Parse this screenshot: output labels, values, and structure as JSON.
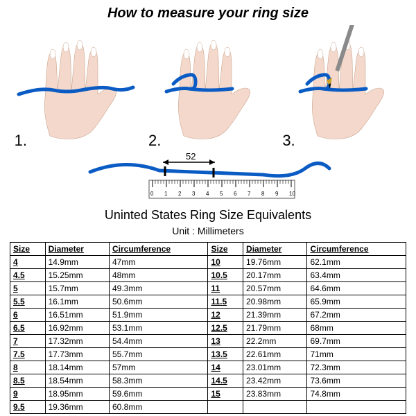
{
  "title": "How to measure your ring size",
  "steps": [
    "1.",
    "2.",
    "3."
  ],
  "ruler": {
    "measurement_label": "52",
    "ticks": [
      "0",
      "1",
      "2",
      "3",
      "4",
      "5",
      "6",
      "7",
      "8",
      "9",
      "10"
    ],
    "string_color": "#0a5cc4",
    "ruler_border": "#555555"
  },
  "subtitle": "Uninted States Ring Size Equivalents",
  "unit_label": "Unit : Millimeters",
  "hand": {
    "skin_color": "#f3d8cb",
    "nail_color": "#ffffff",
    "string_color": "#0a5cc4",
    "pen_body": "#8a8a8a",
    "pen_tip": "#c9a227"
  },
  "table": {
    "headers": [
      "Size",
      "Diameter",
      "Circumference",
      "Size",
      "Diameter",
      "Circumference"
    ],
    "rows": [
      [
        "4",
        "14.9mm",
        "47mm",
        "10",
        "19.76mm",
        "62.1mm"
      ],
      [
        "4.5",
        "15.25mm",
        "48mm",
        "10.5",
        "20.17mm",
        "63.4mm"
      ],
      [
        "5",
        "15.7mm",
        "49.3mm",
        "11",
        "20.57mm",
        "64.6mm"
      ],
      [
        "5.5",
        "16.1mm",
        "50.6mm",
        "11.5",
        "20.98mm",
        "65.9mm"
      ],
      [
        "6",
        "16.51mm",
        "51.9mm",
        "12",
        "21.39mm",
        "67.2mm"
      ],
      [
        "6.5",
        "16.92mm",
        "53.1mm",
        "12.5",
        "21.79mm",
        "68mm"
      ],
      [
        "7",
        "17.32mm",
        "54.4mm",
        "13",
        "22.2mm",
        "69.7mm"
      ],
      [
        "7.5",
        "17.73mm",
        "55.7mm",
        "13.5",
        "22.61mm",
        "71mm"
      ],
      [
        "8",
        "18.14mm",
        "57mm",
        "14",
        "23.01mm",
        "72.3mm"
      ],
      [
        "8.5",
        "18.54mm",
        "58.3mm",
        "14.5",
        "23.42mm",
        "73.6mm"
      ],
      [
        "9",
        "18.95mm",
        "59.6mm",
        "15",
        "23.83mm",
        "74.8mm"
      ],
      [
        "9.5",
        "19.36mm",
        "60.8mm",
        "",
        "",
        ""
      ]
    ]
  }
}
